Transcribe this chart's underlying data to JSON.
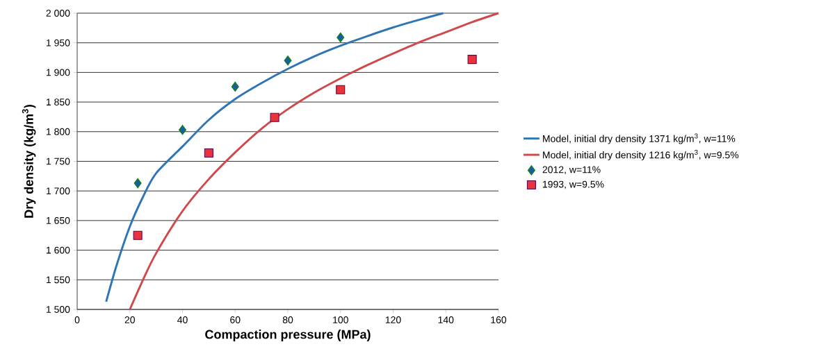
{
  "chart_data": {
    "type": "line",
    "xlabel": "Compaction pressure (MPa)",
    "ylabel": "Dry density (kg/m$^{3}$)",
    "xlim": [
      0,
      160
    ],
    "xticks": [
      0,
      20,
      40,
      60,
      80,
      100,
      120,
      140,
      160
    ],
    "ylim": [
      1500,
      2000
    ],
    "yticks": [
      {
        "value": 1500,
        "label": "1 500"
      },
      {
        "value": 1550,
        "label": "1 550"
      },
      {
        "value": 1600,
        "label": "1 600"
      },
      {
        "value": 1650,
        "label": "1 650"
      },
      {
        "value": 1700,
        "label": "1 700"
      },
      {
        "value": 1750,
        "label": "1 750"
      },
      {
        "value": 1800,
        "label": "1 800"
      },
      {
        "value": 1850,
        "label": "1 850"
      },
      {
        "value": 1900,
        "label": "1 900"
      },
      {
        "value": 1950,
        "label": "1 950"
      },
      {
        "value": 2000,
        "label": "2 000"
      }
    ],
    "grid": "y",
    "legend": "right",
    "series": [
      {
        "name": "Model, initial dry density 1371 kg/m$^{3}$, w=11%",
        "marker": "none",
        "color": "#2e75b6",
        "x": [
          11,
          15,
          20,
          25,
          30,
          40,
          50,
          60,
          70,
          80,
          90,
          100,
          110,
          120,
          130,
          139
        ],
        "values": [
          1513,
          1575,
          1640,
          1690,
          1730,
          1775,
          1820,
          1855,
          1882,
          1906,
          1927,
          1945,
          1961,
          1976,
          1989,
          2000
        ]
      },
      {
        "name": "Model, initial dry density 1216 kg/m$^{3}$,  w=9.5%",
        "marker": "none",
        "color": "#d0494a",
        "x": [
          20,
          25,
          30,
          40,
          50,
          60,
          70,
          80,
          90,
          100,
          110,
          120,
          130,
          140,
          150,
          160
        ],
        "values": [
          1500,
          1550,
          1595,
          1666,
          1720,
          1765,
          1805,
          1838,
          1866,
          1890,
          1912,
          1932,
          1951,
          1968,
          1985,
          2000
        ]
      },
      {
        "name": "2012, w=11%",
        "type": "scatter",
        "marker": "diamond",
        "color": "#1f5c9e",
        "x": [
          23,
          40,
          60,
          80,
          100
        ],
        "values": [
          1713,
          1803,
          1876,
          1920,
          1959
        ]
      },
      {
        "name": "1993, w=9.5%",
        "type": "scatter",
        "marker": "square",
        "color": "#e8333c",
        "x": [
          23,
          50,
          75,
          100,
          150
        ],
        "values": [
          1625,
          1764,
          1824,
          1871,
          1922
        ]
      }
    ]
  }
}
